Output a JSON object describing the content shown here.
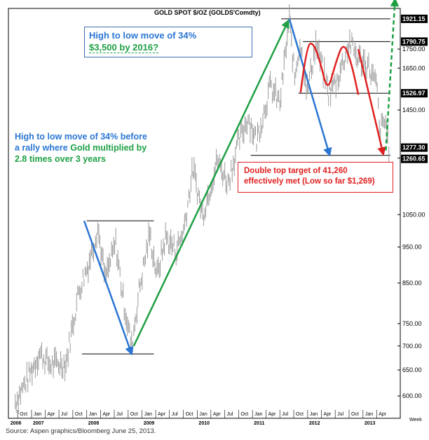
{
  "chart_data": {
    "type": "line",
    "title": "GOLD SPOT $/OZ (GOLDS'Comdty)",
    "y_scale": "log",
    "ylim": [
      560,
      1950
    ],
    "y_ticks": [
      600,
      650,
      700,
      750,
      850,
      950,
      1050,
      1250,
      1450,
      1650,
      1750
    ],
    "y_tick_labels": [
      "600.00",
      "650.00",
      "700.00",
      "750.00",
      "850.00",
      "950.00",
      "1050.00",
      "1250.00",
      "1450.00",
      "1650.00",
      "1750.00"
    ],
    "price_labels": [
      "1921.15",
      "1790.75",
      "1526.97",
      "1277.30",
      "1260.65"
    ],
    "x_unit_label": "Week",
    "x_month_labels": [
      "Oct",
      "Jan",
      "Apr",
      "Jul",
      "Oct",
      "Jan",
      "Apr",
      "Jul",
      "Oct",
      "Jan",
      "Apr",
      "Jul",
      "Oct",
      "Jan",
      "Apr",
      "Jul",
      "Oct",
      "Jan",
      "Apr",
      "Jul",
      "Oct",
      "Jan",
      "Apr",
      "Jul",
      "Oct",
      "Jan",
      "Apr"
    ],
    "x_year_labels": [
      "2006",
      "2007",
      "2008",
      "2009",
      "2010",
      "2011",
      "2012",
      "2013"
    ],
    "series": [
      {
        "values": [
          [
            "2006-09-15",
            590
          ],
          [
            "2006-12-01",
            630
          ],
          [
            "2007-02-23",
            685
          ],
          [
            "2007-05-04",
            660
          ],
          [
            "2007-08-17",
            665
          ],
          [
            "2007-11-09",
            830
          ],
          [
            "2008-01-11",
            900
          ],
          [
            "2008-03-14",
            1010
          ],
          [
            "2008-05-02",
            860
          ],
          [
            "2008-07-11",
            960
          ],
          [
            "2008-08-29",
            810
          ],
          [
            "2008-10-24",
            700
          ],
          [
            "2008-12-12",
            830
          ],
          [
            "2009-02-20",
            990
          ],
          [
            "2009-04-10",
            870
          ],
          [
            "2009-06-05",
            980
          ],
          [
            "2009-08-14",
            940
          ],
          [
            "2009-10-02",
            1000
          ],
          [
            "2009-12-04",
            1210
          ],
          [
            "2010-02-05",
            1050
          ],
          [
            "2010-05-14",
            1240
          ],
          [
            "2010-07-23",
            1160
          ],
          [
            "2010-09-24",
            1300
          ],
          [
            "2010-12-03",
            1420
          ],
          [
            "2011-01-28",
            1320
          ],
          [
            "2011-04-29",
            1560
          ],
          [
            "2011-07-01",
            1480
          ],
          [
            "2011-09-02",
            1921
          ],
          [
            "2011-10-07",
            1600
          ],
          [
            "2011-11-11",
            1790
          ],
          [
            "2011-12-30",
            1540
          ],
          [
            "2012-02-24",
            1780
          ],
          [
            "2012-05-18",
            1530
          ],
          [
            "2012-07-13",
            1590
          ],
          [
            "2012-10-05",
            1790
          ],
          [
            "2012-11-30",
            1700
          ],
          [
            "2013-02-01",
            1670
          ],
          [
            "2013-04-05",
            1550
          ],
          [
            "2013-04-19",
            1360
          ],
          [
            "2013-05-31",
            1400
          ],
          [
            "2013-06-25",
            1277
          ]
        ]
      }
    ],
    "horizontal_levels": [
      {
        "start": "2008-01-01",
        "end": "2009-03-20",
        "value": 1030
      },
      {
        "start": "2007-12-01",
        "end": "2009-03-20",
        "value": 683
      },
      {
        "start": "2011-07-10",
        "end": "2013-07-01",
        "value": 1921.15
      },
      {
        "start": "2011-12-01",
        "end": "2013-07-01",
        "value": 1790.75
      },
      {
        "start": "2011-11-01",
        "end": "2013-07-01",
        "value": 1526.97
      },
      {
        "start": "2010-12-20",
        "end": "2013-07-01",
        "value": 1260.65
      }
    ],
    "trend_arrows": [
      {
        "color": "#2a76d2",
        "dash": false,
        "from": [
          "2007-12-15",
          1030
        ],
        "to": [
          "2008-10-24",
          683
        ]
      },
      {
        "color": "#1fa045",
        "dash": false,
        "from": [
          "2008-11-07",
          700
        ],
        "to": [
          "2011-08-26",
          1910
        ]
      },
      {
        "color": "#2a76d2",
        "dash": false,
        "from": [
          "2011-09-02",
          1921
        ],
        "to": [
          "2012-05-25",
          1262
        ]
      },
      {
        "color": "#e02020",
        "dash": false,
        "from": [
          "2012-12-01",
          1750
        ],
        "to": [
          "2013-05-15",
          1265
        ]
      },
      {
        "color": "#1fa045",
        "dash": true,
        "from": [
          "2013-06-01",
          1280
        ],
        "to": [
          "2013-08-01",
          2040
        ]
      }
    ],
    "double_top_curve": {
      "color": "#e02020",
      "points": [
        [
          "2011-11-15",
          1530
        ],
        [
          "2011-12-25",
          1765
        ],
        [
          "2012-02-05",
          1790
        ],
        [
          "2012-03-25",
          1680
        ],
        [
          "2012-05-12",
          1530
        ],
        [
          "2012-07-05",
          1680
        ],
        [
          "2012-08-25",
          1790
        ],
        [
          "2012-10-15",
          1680
        ],
        [
          "2012-12-01",
          1520
        ]
      ]
    },
    "colors": {
      "price": "#9a9a9a",
      "blue": "#2a76d2",
      "green": "#1fa045",
      "red": "#e02020"
    }
  },
  "annotations": {
    "box1_line1": "High to low move of 34%",
    "box1_line2": "$3,500 by 2016?",
    "box2_line1": "High to low move of 34% before",
    "box2_line2a": "a rally where ",
    "box2_line2b": "Gold multiplied by",
    "box2_line3": "2.8 times over 3 years",
    "box3_line1": "Double top target of 41,260",
    "box3_line2": "effectively  met (Low so far $1,269)"
  },
  "source": "Source: Aspen graphics/Bloomberg June 25, 2013."
}
